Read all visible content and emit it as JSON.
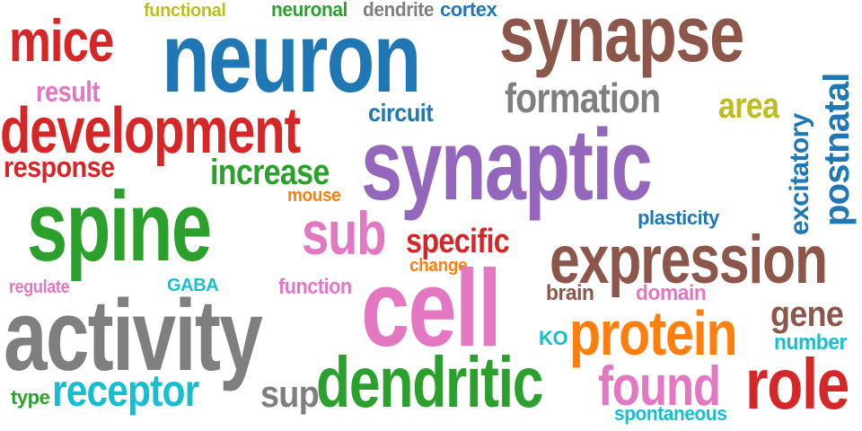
{
  "colors": {
    "background": "#ffffff",
    "red": "#d62728",
    "blue": "#1f77b4",
    "brown": "#8c564b",
    "purple": "#9467bd",
    "green": "#2ca02c",
    "pink": "#e377c2",
    "gray": "#7f7f7f",
    "orange": "#ff7f0e",
    "olive": "#bcbd22",
    "cyan": "#17becf"
  },
  "words": [
    {
      "id": "functional",
      "text": "functional",
      "color": "olive",
      "weight": 1.5
    },
    {
      "id": "neuronal",
      "text": "neuronal",
      "color": "green",
      "weight": 1.6
    },
    {
      "id": "dendrite",
      "text": "dendrite",
      "color": "gray",
      "weight": 1.6
    },
    {
      "id": "cortex",
      "text": "cortex",
      "color": "blue",
      "weight": 1.5
    },
    {
      "id": "synapse",
      "text": "synapse",
      "color": "brown",
      "weight": 7.5
    },
    {
      "id": "mice",
      "text": "mice",
      "color": "red",
      "weight": 4.5
    },
    {
      "id": "neuron",
      "text": "neuron",
      "color": "blue",
      "weight": 8.5
    },
    {
      "id": "result",
      "text": "result",
      "color": "pink",
      "weight": 2.2
    },
    {
      "id": "formation",
      "text": "formation",
      "color": "gray",
      "weight": 3.5
    },
    {
      "id": "area",
      "text": "area",
      "color": "olive",
      "weight": 2.6
    },
    {
      "id": "postnatal",
      "text": "postnatal",
      "color": "blue",
      "weight": 2.8
    },
    {
      "id": "development",
      "text": "development",
      "color": "red",
      "weight": 5.0
    },
    {
      "id": "circuit",
      "text": "circuit",
      "color": "blue",
      "weight": 1.9
    },
    {
      "id": "synaptic",
      "text": "synaptic",
      "color": "purple",
      "weight": 9.0
    },
    {
      "id": "excitatory",
      "text": "excitatory",
      "color": "blue",
      "weight": 1.8
    },
    {
      "id": "response",
      "text": "response",
      "color": "red",
      "weight": 2.4
    },
    {
      "id": "increase",
      "text": "increase",
      "color": "green",
      "weight": 3.0
    },
    {
      "id": "mouse",
      "text": "mouse",
      "color": "orange",
      "weight": 1.3
    },
    {
      "id": "spine",
      "text": "spine",
      "color": "green",
      "weight": 8.0
    },
    {
      "id": "sub",
      "text": "sub",
      "color": "pink",
      "weight": 4.8
    },
    {
      "id": "plasticity",
      "text": "plasticity",
      "color": "blue",
      "weight": 1.6
    },
    {
      "id": "specific",
      "text": "specific",
      "color": "red",
      "weight": 2.7
    },
    {
      "id": "expression",
      "text": "expression",
      "color": "brown",
      "weight": 5.5
    },
    {
      "id": "change",
      "text": "change",
      "color": "orange",
      "weight": 1.4
    },
    {
      "id": "regulate",
      "text": "regulate",
      "color": "pink",
      "weight": 1.4
    },
    {
      "id": "GABA",
      "text": "GABA",
      "color": "cyan",
      "weight": 1.3
    },
    {
      "id": "function",
      "text": "function",
      "color": "pink",
      "weight": 1.7
    },
    {
      "id": "cell",
      "text": "cell",
      "color": "pink",
      "weight": 8.5
    },
    {
      "id": "brain",
      "text": "brain",
      "color": "brown",
      "weight": 1.6
    },
    {
      "id": "domain",
      "text": "domain",
      "color": "pink",
      "weight": 1.6
    },
    {
      "id": "activity",
      "text": "activity",
      "color": "gray",
      "weight": 7.8
    },
    {
      "id": "gene",
      "text": "gene",
      "color": "brown",
      "weight": 2.6
    },
    {
      "id": "KO",
      "text": "KO",
      "color": "cyan",
      "weight": 1.3
    },
    {
      "id": "protein",
      "text": "protein",
      "color": "orange",
      "weight": 5.5
    },
    {
      "id": "number",
      "text": "number",
      "color": "cyan",
      "weight": 1.6
    },
    {
      "id": "type",
      "text": "type",
      "color": "green",
      "weight": 1.4
    },
    {
      "id": "receptor",
      "text": "receptor",
      "color": "cyan",
      "weight": 3.8
    },
    {
      "id": "sup",
      "text": "sup",
      "color": "gray",
      "weight": 2.8
    },
    {
      "id": "dendritic",
      "text": "dendritic",
      "color": "green",
      "weight": 6.2
    },
    {
      "id": "found",
      "text": "found",
      "color": "pink",
      "weight": 4.0
    },
    {
      "id": "role",
      "text": "role",
      "color": "red",
      "weight": 6.0
    },
    {
      "id": "spontaneous",
      "text": "spontaneous",
      "color": "cyan",
      "weight": 1.5
    }
  ]
}
